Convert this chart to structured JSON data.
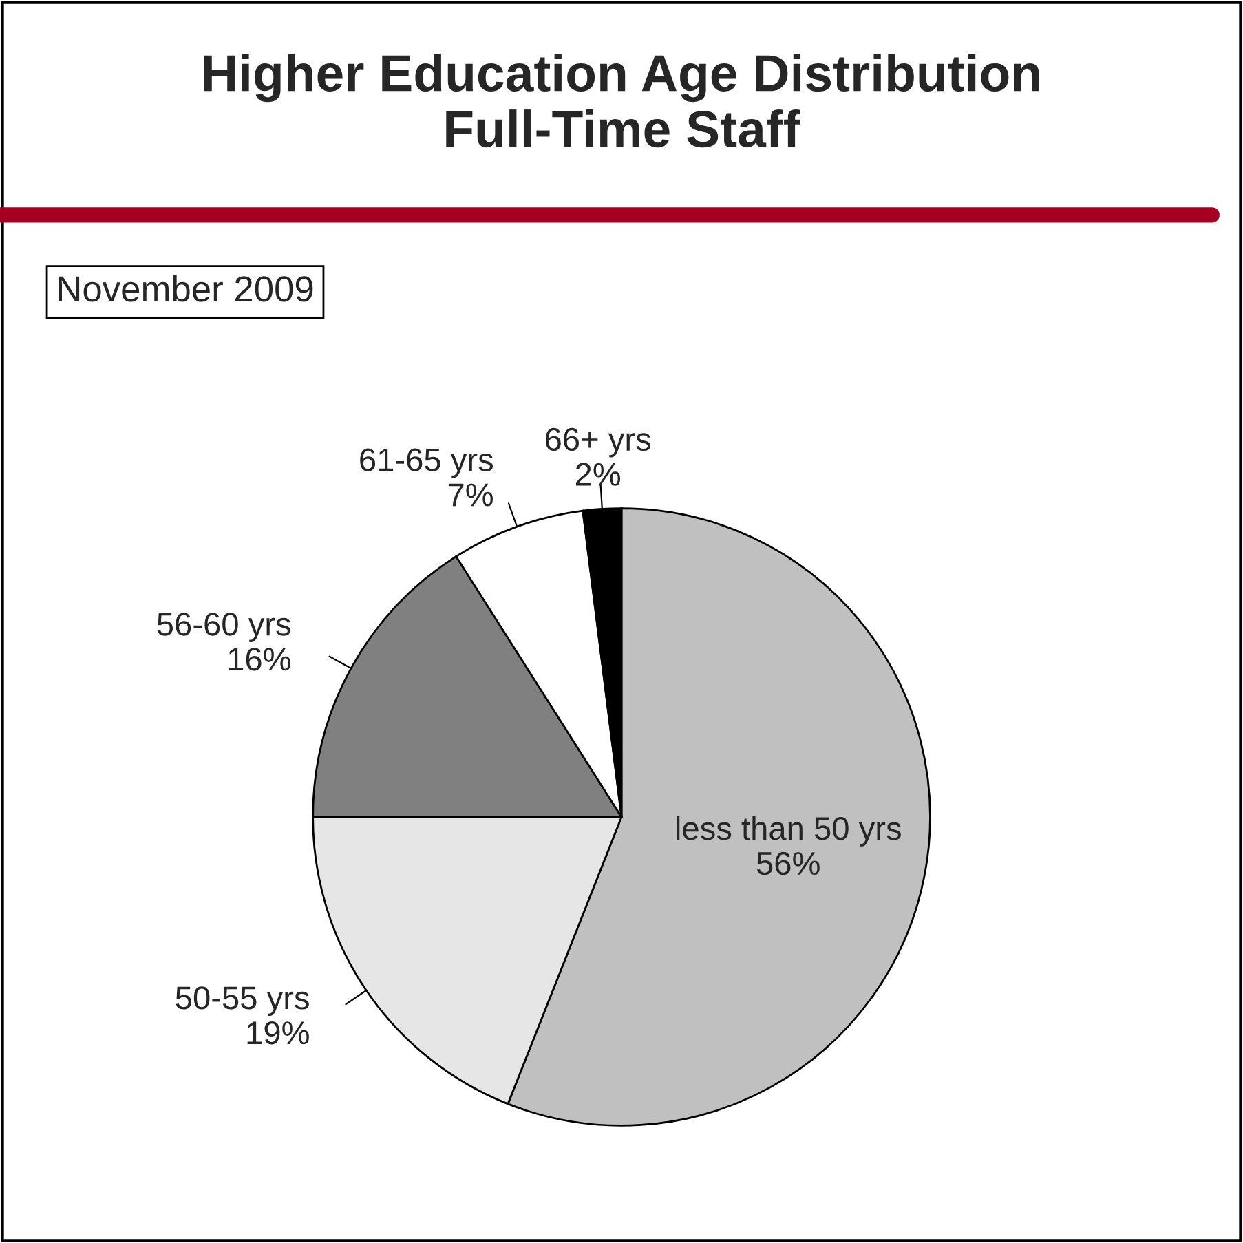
{
  "chart_data": {
    "type": "pie",
    "title": "Higher Education Age Distribution\nFull-Time Staff",
    "subtitle": "November 2009",
    "categories": [
      "less than 50 yrs",
      "50-55 yrs",
      "56-60 yrs",
      "61-65 yrs",
      "66+ yrs"
    ],
    "values": [
      56,
      19,
      16,
      7,
      2
    ],
    "colors": [
      "#c0c0c0",
      "#e6e6e6",
      "#808080",
      "#ffffff",
      "#000000"
    ],
    "value_labels": [
      "56%",
      "19%",
      "16%",
      "7%",
      "2%"
    ],
    "legend": false
  }
}
